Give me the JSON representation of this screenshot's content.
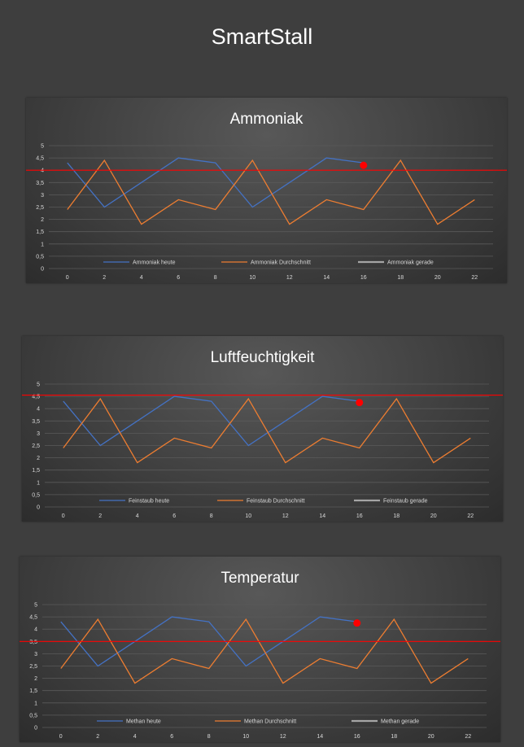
{
  "app": {
    "title": "SmartStall"
  },
  "colors": {
    "heute": "#4472c4",
    "durchschnitt": "#ed7d31",
    "gerade": "#a5a5a5",
    "threshold": "#ff0000",
    "marker": "#ff0000"
  },
  "chart_data": [
    {
      "type": "line",
      "title": "Ammoniak",
      "x": [
        0,
        2,
        4,
        6,
        8,
        10,
        12,
        14,
        16,
        18,
        20,
        22
      ],
      "xticks": [
        "0",
        "2",
        "4",
        "6",
        "8",
        "10",
        "12",
        "14",
        "16",
        "18",
        "20",
        "22"
      ],
      "yticks": [
        "0",
        "0,5",
        "1",
        "1,5",
        "2",
        "2,5",
        "3",
        "3,5",
        "4",
        "4,5",
        "5"
      ],
      "xlim": [
        -1,
        23
      ],
      "ylim": [
        0,
        5
      ],
      "grid": true,
      "legend_position": "bottom",
      "series": [
        {
          "name": "Ammoniak heute",
          "x": [
            0,
            2,
            4,
            6,
            8,
            10,
            12,
            14,
            16
          ],
          "values": [
            4.3,
            2.5,
            3.5,
            4.5,
            4.3,
            2.5,
            3.5,
            4.5,
            4.3
          ]
        },
        {
          "name": "Ammoniak Durchschnitt",
          "x": [
            0,
            2,
            4,
            6,
            8,
            10,
            12,
            14,
            16,
            18,
            20,
            22
          ],
          "values": [
            2.4,
            4.4,
            1.8,
            2.8,
            2.4,
            4.4,
            1.8,
            2.8,
            2.4,
            4.4,
            1.8,
            2.8
          ]
        },
        {
          "name": "Ammoniak gerade",
          "x": [],
          "values": []
        }
      ],
      "threshold": 4.0,
      "marker": {
        "x": 16,
        "y": 4.2
      }
    },
    {
      "type": "line",
      "title": "Luftfeuchtigkeit",
      "x": [
        0,
        2,
        4,
        6,
        8,
        10,
        12,
        14,
        16,
        18,
        20,
        22
      ],
      "xticks": [
        "0",
        "2",
        "4",
        "6",
        "8",
        "10",
        "12",
        "14",
        "16",
        "18",
        "20",
        "22"
      ],
      "yticks": [
        "0",
        "0,5",
        "1",
        "1,5",
        "2",
        "2,5",
        "3",
        "3,5",
        "4",
        "4,5",
        "5"
      ],
      "xlim": [
        -1,
        23
      ],
      "ylim": [
        0,
        5
      ],
      "grid": true,
      "legend_position": "bottom",
      "series": [
        {
          "name": "Feinstaub heute",
          "x": [
            0,
            2,
            4,
            6,
            8,
            10,
            12,
            14,
            16
          ],
          "values": [
            4.3,
            2.5,
            3.5,
            4.5,
            4.3,
            2.5,
            3.5,
            4.5,
            4.3
          ]
        },
        {
          "name": "Feinstaub Durchschnitt",
          "x": [
            0,
            2,
            4,
            6,
            8,
            10,
            12,
            14,
            16,
            18,
            20,
            22
          ],
          "values": [
            2.4,
            4.4,
            1.8,
            2.8,
            2.4,
            4.4,
            1.8,
            2.8,
            2.4,
            4.4,
            1.8,
            2.8
          ]
        },
        {
          "name": "Feinstaub gerade",
          "x": [],
          "values": []
        }
      ],
      "threshold": 4.55,
      "marker": {
        "x": 16,
        "y": 4.25
      }
    },
    {
      "type": "line",
      "title": "Temperatur",
      "x": [
        0,
        2,
        4,
        6,
        8,
        10,
        12,
        14,
        16,
        18,
        20,
        22
      ],
      "xticks": [
        "0",
        "2",
        "4",
        "6",
        "8",
        "10",
        "12",
        "14",
        "16",
        "18",
        "20",
        "22"
      ],
      "yticks": [
        "0",
        "0,5",
        "1",
        "1,5",
        "2",
        "2,5",
        "3",
        "3,5",
        "4",
        "4,5",
        "5"
      ],
      "xlim": [
        -1,
        23
      ],
      "ylim": [
        0,
        5
      ],
      "grid": true,
      "legend_position": "bottom",
      "series": [
        {
          "name": "Methan heute",
          "x": [
            0,
            2,
            4,
            6,
            8,
            10,
            12,
            14,
            16
          ],
          "values": [
            4.3,
            2.5,
            3.5,
            4.5,
            4.3,
            2.5,
            3.5,
            4.5,
            4.3
          ]
        },
        {
          "name": "Methan Durchschnitt",
          "x": [
            0,
            2,
            4,
            6,
            8,
            10,
            12,
            14,
            16,
            18,
            20,
            22
          ],
          "values": [
            2.4,
            4.4,
            1.8,
            2.8,
            2.4,
            4.4,
            1.8,
            2.8,
            2.4,
            4.4,
            1.8,
            2.8
          ]
        },
        {
          "name": "Methan gerade",
          "x": [],
          "values": []
        }
      ],
      "threshold": 3.5,
      "marker": {
        "x": 16,
        "y": 4.25
      }
    }
  ]
}
